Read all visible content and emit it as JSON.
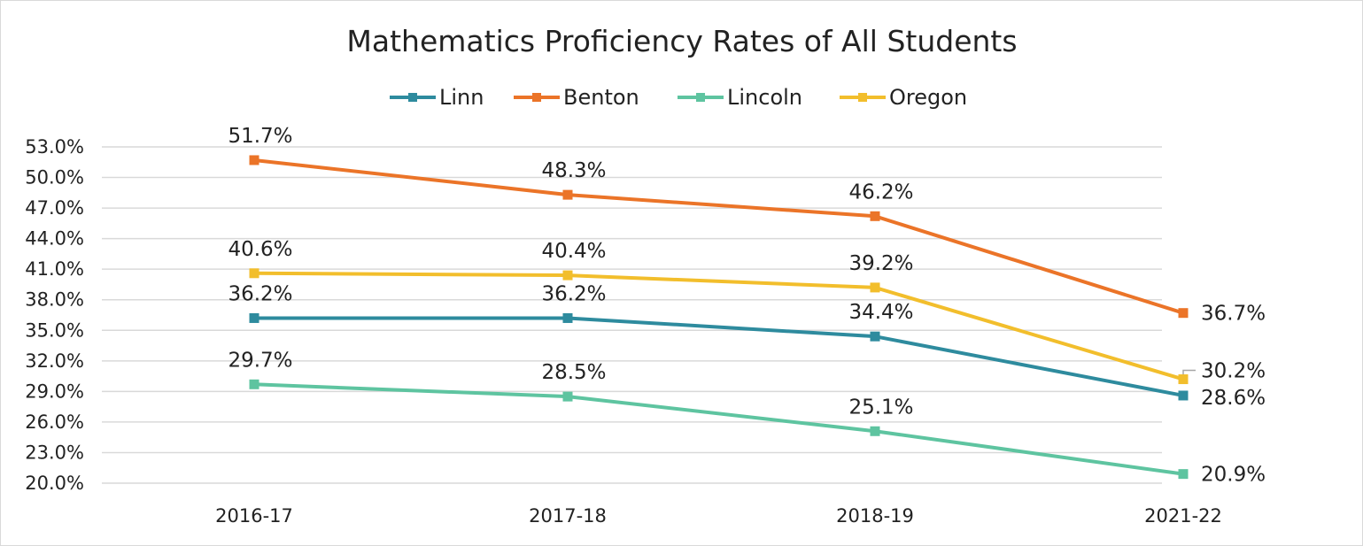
{
  "chart_data": {
    "type": "line",
    "title": "Mathematics Proficiency Rates of All Students",
    "xlabel": "",
    "ylabel": "",
    "categories": [
      "2016-17",
      "2017-18",
      "2018-19",
      "2021-22"
    ],
    "ylim": [
      20.0,
      53.0
    ],
    "yticks": [
      "53.0%",
      "50.0%",
      "47.0%",
      "44.0%",
      "41.0%",
      "38.0%",
      "35.0%",
      "32.0%",
      "29.0%",
      "26.0%",
      "23.0%",
      "20.0%"
    ],
    "legend_position": "top",
    "series": [
      {
        "name": "Linn",
        "color": "#2E8B9E",
        "values": [
          36.2,
          36.2,
          34.4,
          28.6
        ],
        "labels": [
          "36.2%",
          "36.2%",
          "34.4%",
          "28.6%"
        ]
      },
      {
        "name": "Benton",
        "color": "#EB7428",
        "values": [
          51.7,
          48.3,
          46.2,
          36.7
        ],
        "labels": [
          "51.7%",
          "48.3%",
          "46.2%",
          "36.7%"
        ]
      },
      {
        "name": "Lincoln",
        "color": "#5EC4A0",
        "values": [
          29.7,
          28.5,
          25.1,
          20.9
        ],
        "labels": [
          "29.7%",
          "28.5%",
          "25.1%",
          "20.9%"
        ]
      },
      {
        "name": "Oregon",
        "color": "#F2BE2C",
        "values": [
          40.6,
          40.4,
          39.2,
          30.2
        ],
        "labels": [
          "40.6%",
          "40.4%",
          "39.2%",
          "30.2%"
        ]
      }
    ]
  }
}
